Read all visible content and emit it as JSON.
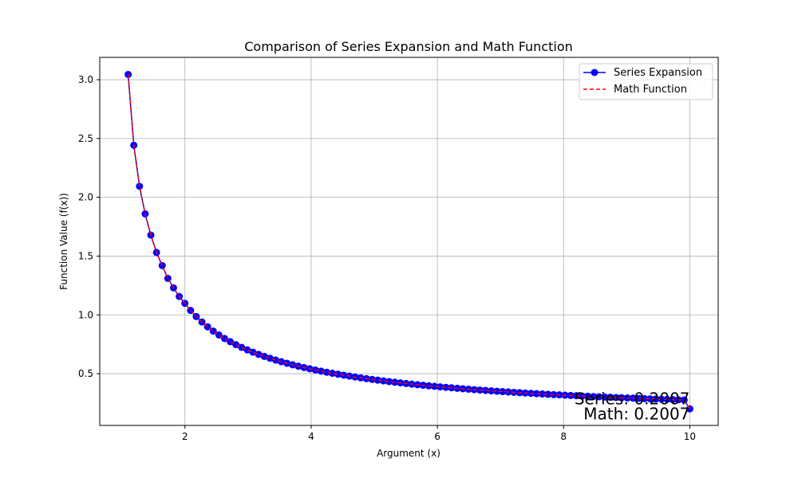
{
  "chart_data": {
    "type": "line",
    "title": "Comparison of Series Expansion and Math Function",
    "xlabel": "Argument (x)",
    "ylabel": "Function Value (f(x))",
    "xlim": [
      0.65,
      10.45
    ],
    "ylim": [
      0.06,
      3.19
    ],
    "xticks": [
      2,
      4,
      6,
      8,
      10
    ],
    "xtick_labels": [
      "2",
      "4",
      "6",
      "8",
      "10"
    ],
    "yticks": [
      0.5,
      1.0,
      1.5,
      2.0,
      2.5,
      3.0
    ],
    "ytick_labels": [
      "0.5",
      "1.0",
      "1.5",
      "2.0",
      "2.5",
      "3.0"
    ],
    "grid": true,
    "legend_position": "top-right",
    "x_range": {
      "start": 1.1,
      "stop": 10.0,
      "count": 100
    },
    "series": [
      {
        "name": "Series Expansion",
        "color": "#0000ff",
        "line_style": "solid",
        "marker": "circle",
        "values": [
          3.0445,
          2.4423,
          2.0935,
          1.8588,
          1.6785,
          1.5308,
          1.4196,
          1.3105,
          1.2297,
          1.1567,
          1.0986,
          1.0379,
          0.9857,
          0.9397,
          0.8988,
          0.8622,
          0.8292,
          0.7992,
          0.772,
          0.7468,
          0.7238,
          0.7024,
          0.6826,
          0.6642,
          0.647,
          0.6309,
          0.6158,
          0.6016,
          0.5882,
          0.5756,
          0.5637,
          0.5524,
          0.5416,
          0.5314,
          0.5217,
          0.5124,
          0.5036,
          0.4951,
          0.487,
          0.4793,
          0.4718,
          0.4647,
          0.4578,
          0.4512,
          0.4449,
          0.4388,
          0.4329,
          0.4272,
          0.4217,
          0.4164,
          0.4113,
          0.4063,
          0.4015,
          0.3969,
          0.3924,
          0.388,
          0.3838,
          0.3797,
          0.3757,
          0.3718,
          0.3681,
          0.3644,
          0.3609,
          0.3574,
          0.354,
          0.3508,
          0.3476,
          0.3444,
          0.3414,
          0.3384,
          0.3356,
          0.3327,
          0.33,
          0.3273,
          0.3247,
          0.3221,
          0.3196,
          0.3172,
          0.3148,
          0.3125,
          0.3102,
          0.308,
          0.3058,
          0.3036,
          0.3015,
          0.2995,
          0.2975,
          0.2955,
          0.2936,
          0.2917,
          0.2898,
          0.288,
          0.2862,
          0.2845,
          0.2828,
          0.2811,
          0.2794,
          0.2778,
          0.2762,
          0.2007
        ]
      },
      {
        "name": "Math Function",
        "color": "#ff0000",
        "line_style": "dashed",
        "marker": "none",
        "values": "same as Series Expansion"
      }
    ],
    "annotations": [
      {
        "text": "Series: 0.2007",
        "x": 10.0,
        "y": 0.24,
        "align": "right"
      },
      {
        "text": "Math: 0.2007",
        "x": 10.0,
        "y": 0.11,
        "align": "right"
      }
    ]
  }
}
